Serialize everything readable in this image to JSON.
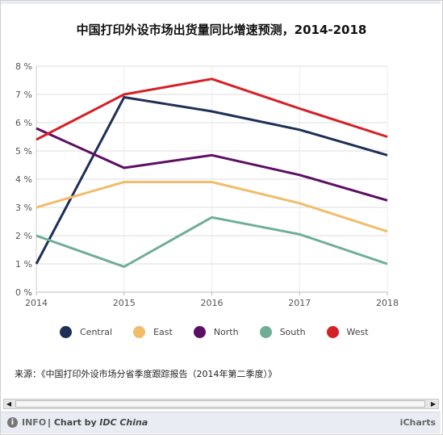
{
  "chart_data": {
    "type": "line",
    "title": "中国打印外设市场出货量同比增速预测，2014-2018",
    "x": [
      "2014",
      "2015",
      "2016",
      "2017",
      "2018"
    ],
    "y_ticks": [
      "0 %",
      "1 %",
      "2 %",
      "3 %",
      "4 %",
      "5 %",
      "6 %",
      "7 %",
      "8 %"
    ],
    "ylim": [
      0,
      8
    ],
    "grid": true,
    "legend_position": "bottom",
    "series": [
      {
        "name": "Central",
        "color": "#1e2f56",
        "values": [
          1.0,
          6.9,
          6.4,
          5.75,
          4.85
        ]
      },
      {
        "name": "East",
        "color": "#f0bd6b",
        "values": [
          3.0,
          3.9,
          3.9,
          3.15,
          2.15
        ]
      },
      {
        "name": "North",
        "color": "#5b0f63",
        "values": [
          5.8,
          4.4,
          4.85,
          4.15,
          3.25
        ]
      },
      {
        "name": "South",
        "color": "#6fae96",
        "values": [
          2.0,
          0.9,
          2.65,
          2.05,
          1.0
        ]
      },
      {
        "name": "West",
        "color": "#d42127",
        "values": [
          5.4,
          7.0,
          7.55,
          6.5,
          5.5
        ]
      }
    ]
  },
  "source": "来源：《中国打印外设市场分省季度跟踪报告（2014年第二季度）》",
  "footer": {
    "info": "INFO",
    "credit_prefix": "| Chart by",
    "credit_name": "IDC China",
    "brand": "iCharts"
  },
  "scrollbar": {
    "left_arrow": "◀",
    "right_arrow": "▶"
  }
}
